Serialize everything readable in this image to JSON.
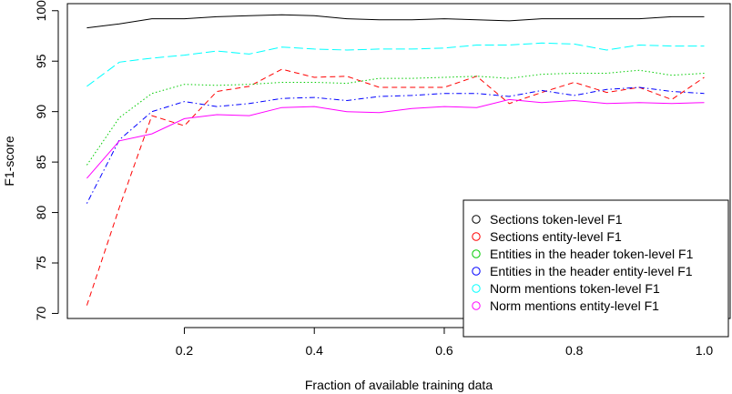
{
  "chart_data": {
    "type": "line",
    "title": "",
    "xlabel": "Fraction of available training data",
    "ylabel": "F1-score",
    "xlim": [
      0.02,
      1.04
    ],
    "ylim": [
      69.5,
      100.7
    ],
    "x_ticks": [
      0.2,
      0.4,
      0.6,
      0.8,
      1.0
    ],
    "x_tick_labels": [
      "0.2",
      "0.4",
      "0.6",
      "0.8",
      "1.0"
    ],
    "y_ticks": [
      70,
      75,
      80,
      85,
      90,
      95,
      100
    ],
    "y_tick_labels": [
      "70",
      "75",
      "80",
      "85",
      "90",
      "95",
      "100"
    ],
    "grid": false,
    "legend_position": "bottom-right",
    "x": [
      0.05,
      0.1,
      0.15,
      0.2,
      0.25,
      0.3,
      0.35,
      0.4,
      0.45,
      0.5,
      0.55,
      0.6,
      0.65,
      0.7,
      0.75,
      0.8,
      0.85,
      0.9,
      0.95,
      1.0
    ],
    "series": [
      {
        "name": "Sections token-level F1",
        "color": "#000000",
        "dash": "solid",
        "values": [
          98.3,
          98.7,
          99.2,
          99.2,
          99.4,
          99.5,
          99.6,
          99.5,
          99.2,
          99.1,
          99.1,
          99.2,
          99.1,
          99.0,
          99.2,
          99.2,
          99.2,
          99.2,
          99.4,
          99.4
        ]
      },
      {
        "name": "Sections entity-level F1",
        "color": "#ff0000",
        "dash": "dashed",
        "values": [
          70.8,
          80.5,
          89.6,
          88.6,
          92.0,
          92.5,
          94.2,
          93.4,
          93.5,
          92.4,
          92.4,
          92.4,
          93.5,
          90.8,
          91.9,
          92.9,
          91.9,
          92.4,
          91.2,
          93.4
        ]
      },
      {
        "name": "Entities in the header token-level F1",
        "color": "#00cc00",
        "dash": "dotted",
        "values": [
          84.7,
          89.4,
          91.8,
          92.7,
          92.6,
          92.7,
          92.9,
          92.9,
          92.8,
          93.3,
          93.3,
          93.4,
          93.5,
          93.3,
          93.7,
          93.8,
          93.8,
          94.1,
          93.6,
          93.8
        ]
      },
      {
        "name": "Entities in the header entity-level F1",
        "color": "#0000ff",
        "dash": "dotdash",
        "values": [
          80.9,
          87.2,
          90.0,
          91.0,
          90.5,
          90.8,
          91.3,
          91.4,
          91.1,
          91.5,
          91.6,
          91.8,
          91.8,
          91.5,
          92.1,
          91.6,
          92.2,
          92.4,
          92.0,
          91.8
        ]
      },
      {
        "name": "Norm mentions token-level F1",
        "color": "#00ffff",
        "dash": "longdash",
        "values": [
          92.5,
          94.9,
          95.3,
          95.6,
          96.0,
          95.7,
          96.4,
          96.2,
          96.1,
          96.2,
          96.2,
          96.3,
          96.6,
          96.6,
          96.8,
          96.7,
          96.1,
          96.6,
          96.5,
          96.5
        ]
      },
      {
        "name": "Norm mentions entity-level F1",
        "color": "#ff00ff",
        "dash": "solid",
        "values": [
          83.4,
          87.1,
          87.8,
          89.3,
          89.7,
          89.6,
          90.4,
          90.5,
          90.0,
          89.9,
          90.3,
          90.5,
          90.4,
          91.2,
          90.9,
          91.1,
          90.8,
          90.9,
          90.8,
          90.9
        ]
      }
    ]
  }
}
